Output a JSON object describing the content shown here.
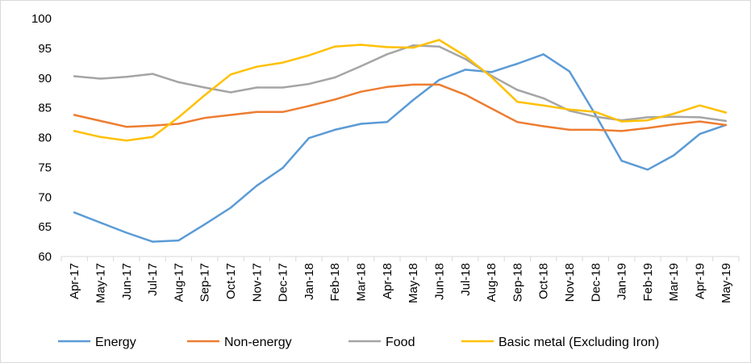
{
  "chart_data": {
    "type": "line",
    "title": "",
    "xlabel": "",
    "ylabel": "",
    "ylim": [
      60,
      100
    ],
    "yticks": [
      60,
      65,
      70,
      75,
      80,
      85,
      90,
      95,
      100
    ],
    "grid": false,
    "legend_position": "bottom",
    "categories": [
      "Apr-17",
      "May-17",
      "Jun-17",
      "Jul-17",
      "Aug-17",
      "Sep-17",
      "Oct-17",
      "Nov-17",
      "Dec-17",
      "Jan-18",
      "Feb-18",
      "Mar-18",
      "Apr-18",
      "May-18",
      "Jun-18",
      "Jul-18",
      "Aug-18",
      "Sep-18",
      "Oct-18",
      "Nov-18",
      "Dec-18",
      "Jan-19",
      "Feb-19",
      "Mar-19",
      "Apr-19",
      "May-19"
    ],
    "series": [
      {
        "name": "Energy",
        "color": "#5B9BD5",
        "values": [
          67.4,
          65.7,
          64.0,
          62.5,
          62.7,
          65.4,
          68.2,
          71.9,
          74.9,
          79.9,
          81.3,
          82.3,
          82.6,
          86.3,
          89.7,
          91.4,
          91.0,
          92.4,
          94.0,
          91.1,
          83.8,
          76.1,
          74.6,
          77.0,
          80.6,
          82.1
        ]
      },
      {
        "name": "Non-energy",
        "color": "#ED7D31",
        "values": [
          83.8,
          82.8,
          81.8,
          82.0,
          82.3,
          83.3,
          83.8,
          84.3,
          84.3,
          85.3,
          86.4,
          87.7,
          88.5,
          88.9,
          88.9,
          87.2,
          84.9,
          82.6,
          81.9,
          81.3,
          81.3,
          81.1,
          81.6,
          82.2,
          82.7,
          82.1
        ]
      },
      {
        "name": "Food",
        "color": "#A5A5A5",
        "values": [
          90.3,
          89.9,
          90.2,
          90.7,
          89.3,
          88.4,
          87.6,
          88.4,
          88.4,
          89.0,
          90.1,
          92.0,
          94.0,
          95.5,
          95.3,
          93.2,
          90.4,
          88.0,
          86.6,
          84.5,
          83.5,
          82.9,
          83.4,
          83.5,
          83.4,
          82.8
        ]
      },
      {
        "name": "Basic metal (Excluding Iron)",
        "color": "#FFC000",
        "values": [
          81.1,
          80.1,
          79.5,
          80.1,
          83.4,
          87.1,
          90.6,
          91.9,
          92.6,
          93.8,
          95.3,
          95.6,
          95.2,
          95.1,
          96.4,
          93.7,
          90.2,
          86.0,
          85.4,
          84.7,
          84.3,
          82.7,
          82.9,
          84.0,
          85.4,
          84.2
        ]
      }
    ]
  }
}
